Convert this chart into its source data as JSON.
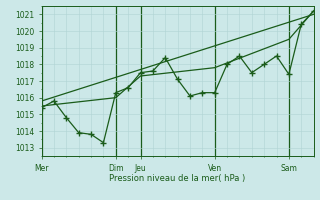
{
  "background_color": "#cce8e8",
  "grid_color_minor": "#b0d4d4",
  "grid_color_major": "#8ab8b8",
  "line_color": "#1a5c1a",
  "text_color": "#1a5c1a",
  "xlabel": "Pression niveau de la mer( hPa )",
  "ylim": [
    1012.5,
    1021.5
  ],
  "yticks": [
    1013,
    1014,
    1015,
    1016,
    1017,
    1018,
    1019,
    1020,
    1021
  ],
  "day_labels": [
    "Mer",
    "Dim",
    "Jeu",
    "Ven",
    "Sam"
  ],
  "day_positions": [
    0,
    72,
    96,
    168,
    240
  ],
  "xlim": [
    0,
    264
  ],
  "line1_x": [
    0,
    12,
    24,
    36,
    48,
    60,
    72,
    84,
    96,
    108,
    120,
    132,
    144,
    156,
    168,
    180,
    192,
    204,
    216,
    228,
    240,
    252,
    264
  ],
  "line1_y": [
    1015.4,
    1015.8,
    1014.8,
    1013.9,
    1013.8,
    1013.3,
    1016.3,
    1016.6,
    1017.5,
    1017.6,
    1018.4,
    1017.1,
    1016.1,
    1016.3,
    1016.3,
    1018.0,
    1018.5,
    1017.5,
    1018.0,
    1018.5,
    1017.4,
    1020.4,
    1021.2
  ],
  "line2_x": [
    0,
    72,
    96,
    168,
    240,
    264
  ],
  "line2_y": [
    1015.5,
    1016.0,
    1017.3,
    1017.8,
    1019.5,
    1021.2
  ],
  "line3_x": [
    0,
    264
  ],
  "line3_y": [
    1015.8,
    1021.0
  ]
}
